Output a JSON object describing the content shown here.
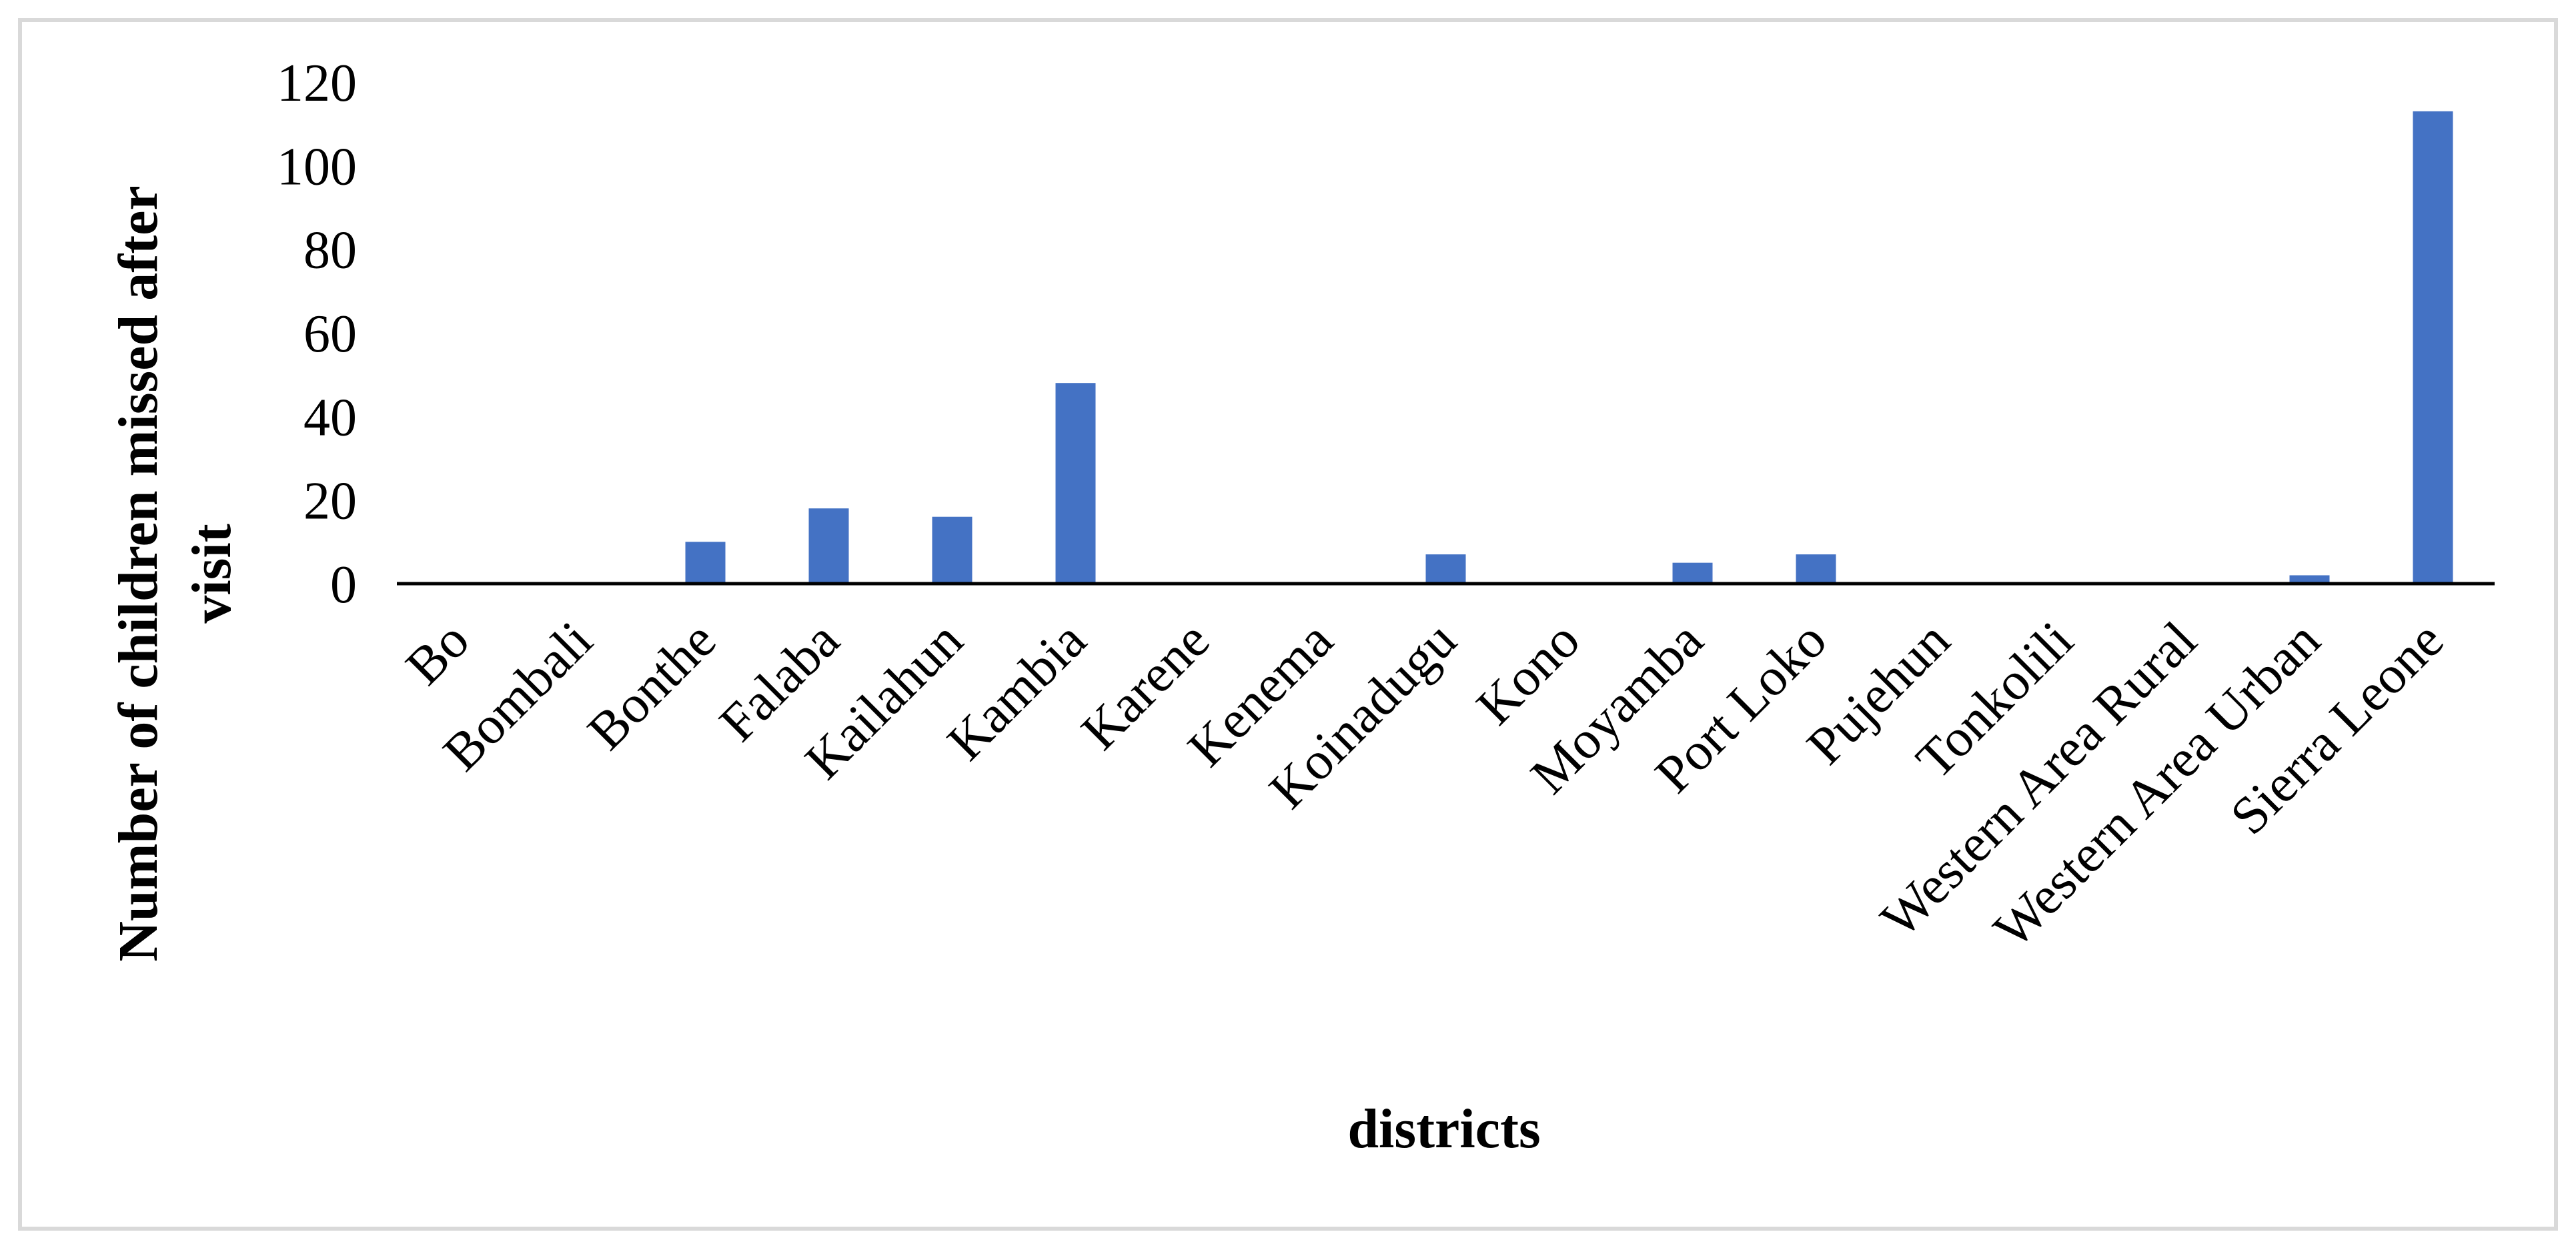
{
  "chart_data": {
    "type": "bar",
    "title": "",
    "xlabel": "districts",
    "ylabel_lines": [
      "Number of children missed after",
      "visit"
    ],
    "categories": [
      "Bo",
      "Bombali",
      "Bonthe",
      "Falaba",
      "Kailahun",
      "Kambia",
      "Karene",
      "Kenema",
      "Koinadugu",
      "Kono",
      "Moyamba",
      "Port Loko",
      "Pujehun",
      "Tonkolili",
      "Western Area Rural",
      "Western Area Urban",
      "Sierra Leone"
    ],
    "values": [
      0,
      0,
      10,
      18,
      16,
      48,
      0,
      0,
      7,
      0,
      5,
      7,
      0,
      0,
      0,
      2,
      113
    ],
    "ylim": [
      0,
      120
    ],
    "yticks": [
      0,
      20,
      40,
      60,
      80,
      100,
      120
    ],
    "bar_color": "#4472C4",
    "grid": false,
    "legend": "none"
  }
}
